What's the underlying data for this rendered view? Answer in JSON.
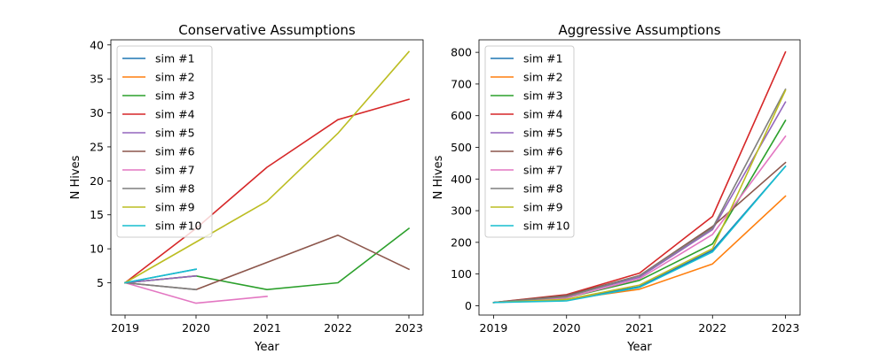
{
  "chart_data": [
    {
      "type": "line",
      "title": "Conservative Assumptions",
      "xlabel": "Year",
      "ylabel": "N Hives",
      "xlim": [
        2018.8,
        2023.2
      ],
      "ylim": [
        0.25,
        40.75
      ],
      "xticks": [
        "2019",
        "2020",
        "2021",
        "2022",
        "2023"
      ],
      "yticks": [
        "5",
        "10",
        "15",
        "20",
        "25",
        "30",
        "35",
        "40"
      ],
      "legend_position": "top-left",
      "grid": false,
      "series": [
        {
          "name": "sim #1",
          "color": "#1f77b4",
          "x": [
            2019,
            2020
          ],
          "y": [
            5,
            7
          ]
        },
        {
          "name": "sim #2",
          "color": "#ff7f0e",
          "x": [
            2019,
            2020
          ],
          "y": [
            5,
            6
          ]
        },
        {
          "name": "sim #3",
          "color": "#2ca02c",
          "x": [
            2019,
            2020,
            2021,
            2022,
            2023
          ],
          "y": [
            5,
            6,
            4,
            5,
            13
          ]
        },
        {
          "name": "sim #4",
          "color": "#d62728",
          "x": [
            2019,
            2020,
            2021,
            2022,
            2023
          ],
          "y": [
            5,
            13,
            22,
            29,
            32
          ]
        },
        {
          "name": "sim #5",
          "color": "#9467bd",
          "x": [
            2019,
            2020
          ],
          "y": [
            5,
            6
          ]
        },
        {
          "name": "sim #6",
          "color": "#8c564b",
          "x": [
            2019,
            2020,
            2021,
            2022,
            2023
          ],
          "y": [
            5,
            4,
            8,
            12,
            7
          ]
        },
        {
          "name": "sim #7",
          "color": "#e377c2",
          "x": [
            2019,
            2020,
            2021
          ],
          "y": [
            5,
            2,
            3
          ]
        },
        {
          "name": "sim #8",
          "color": "#7f7f7f",
          "x": [
            2019,
            2020
          ],
          "y": [
            5,
            4
          ]
        },
        {
          "name": "sim #9",
          "color": "#bcbd22",
          "x": [
            2019,
            2020,
            2021,
            2022,
            2023
          ],
          "y": [
            5,
            11,
            17,
            27,
            39
          ]
        },
        {
          "name": "sim #10",
          "color": "#17becf",
          "x": [
            2019,
            2020
          ],
          "y": [
            5,
            7
          ]
        }
      ]
    },
    {
      "type": "line",
      "title": "Aggressive Assumptions",
      "xlabel": "Year",
      "ylabel": "N Hives",
      "xlim": [
        2018.8,
        2023.2
      ],
      "ylim": [
        -29.6,
        839.5
      ],
      "xticks": [
        "2019",
        "2020",
        "2021",
        "2022",
        "2023"
      ],
      "yticks": [
        "0",
        "100",
        "200",
        "300",
        "400",
        "500",
        "600",
        "700",
        "800"
      ],
      "legend_position": "top-left",
      "grid": false,
      "series": [
        {
          "name": "sim #1",
          "color": "#1f77b4",
          "x": [
            2019,
            2020,
            2021,
            2022,
            2023
          ],
          "y": [
            10,
            20,
            60,
            175,
            440
          ]
        },
        {
          "name": "sim #2",
          "color": "#ff7f0e",
          "x": [
            2019,
            2020,
            2021,
            2022,
            2023
          ],
          "y": [
            10,
            20,
            52,
            132,
            346
          ]
        },
        {
          "name": "sim #3",
          "color": "#2ca02c",
          "x": [
            2019,
            2020,
            2021,
            2022,
            2023
          ],
          "y": [
            10,
            25,
            80,
            195,
            585
          ]
        },
        {
          "name": "sim #4",
          "color": "#d62728",
          "x": [
            2019,
            2020,
            2021,
            2022,
            2023
          ],
          "y": [
            10,
            35,
            103,
            282,
            801
          ]
        },
        {
          "name": "sim #5",
          "color": "#9467bd",
          "x": [
            2019,
            2020,
            2021,
            2022,
            2023
          ],
          "y": [
            10,
            30,
            90,
            240,
            643
          ]
        },
        {
          "name": "sim #6",
          "color": "#8c564b",
          "x": [
            2019,
            2020,
            2021,
            2022,
            2023
          ],
          "y": [
            10,
            33,
            95,
            250,
            452
          ]
        },
        {
          "name": "sim #7",
          "color": "#e377c2",
          "x": [
            2019,
            2020,
            2021,
            2022,
            2023
          ],
          "y": [
            10,
            25,
            85,
            225,
            535
          ]
        },
        {
          "name": "sim #8",
          "color": "#7f7f7f",
          "x": [
            2019,
            2020,
            2021,
            2022,
            2023
          ],
          "y": [
            10,
            28,
            95,
            245,
            683
          ]
        },
        {
          "name": "sim #9",
          "color": "#bcbd22",
          "x": [
            2019,
            2020,
            2021,
            2022,
            2023
          ],
          "y": [
            10,
            20,
            65,
            180,
            680
          ]
        },
        {
          "name": "sim #10",
          "color": "#17becf",
          "x": [
            2019,
            2020,
            2021,
            2022,
            2023
          ],
          "y": [
            10,
            15,
            58,
            170,
            440
          ]
        }
      ]
    }
  ]
}
